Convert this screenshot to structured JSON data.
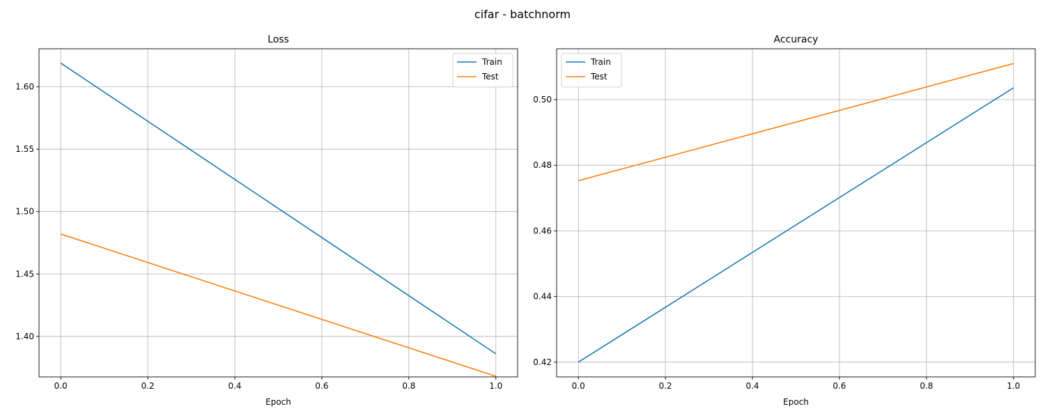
{
  "figure": {
    "title": "cifar - batchnorm"
  },
  "colors": {
    "train": "#1f77b4",
    "test": "#ff7f0e",
    "grid": "#b0b0b0",
    "axis": "#000000"
  },
  "chart_data": [
    {
      "type": "line",
      "title": "Loss",
      "xlabel": "Epoch",
      "ylabel": "",
      "x": [
        0,
        1
      ],
      "xlim": [
        -0.05,
        1.05
      ],
      "ylim": [
        1.3675,
        1.6305
      ],
      "xticks": [
        0.0,
        0.2,
        0.4,
        0.6,
        0.8,
        1.0
      ],
      "yticks": [
        1.4,
        1.45,
        1.5,
        1.55,
        1.6
      ],
      "xtick_labels": [
        "0.0",
        "0.2",
        "0.4",
        "0.6",
        "0.8",
        "1.0"
      ],
      "ytick_labels": [
        "1.40",
        "1.45",
        "1.50",
        "1.55",
        "1.60"
      ],
      "grid": true,
      "legend_position": "upper-right",
      "series": [
        {
          "name": "Train",
          "values": [
            1.619,
            1.386
          ],
          "color": "#1f77b4"
        },
        {
          "name": "Test",
          "values": [
            1.482,
            1.368
          ],
          "color": "#ff7f0e"
        }
      ]
    },
    {
      "type": "line",
      "title": "Accuracy",
      "xlabel": "Epoch",
      "ylabel": "",
      "x": [
        0,
        1
      ],
      "xlim": [
        -0.05,
        1.05
      ],
      "ylim": [
        0.4155,
        0.5155
      ],
      "xticks": [
        0.0,
        0.2,
        0.4,
        0.6,
        0.8,
        1.0
      ],
      "yticks": [
        0.42,
        0.44,
        0.46,
        0.48,
        0.5
      ],
      "xtick_labels": [
        "0.0",
        "0.2",
        "0.4",
        "0.6",
        "0.8",
        "1.0"
      ],
      "ytick_labels": [
        "0.42",
        "0.44",
        "0.46",
        "0.48",
        "0.50"
      ],
      "grid": true,
      "legend_position": "upper-left",
      "series": [
        {
          "name": "Train",
          "values": [
            0.42,
            0.5036
          ],
          "color": "#1f77b4"
        },
        {
          "name": "Test",
          "values": [
            0.4753,
            0.511
          ],
          "color": "#ff7f0e"
        }
      ]
    }
  ]
}
